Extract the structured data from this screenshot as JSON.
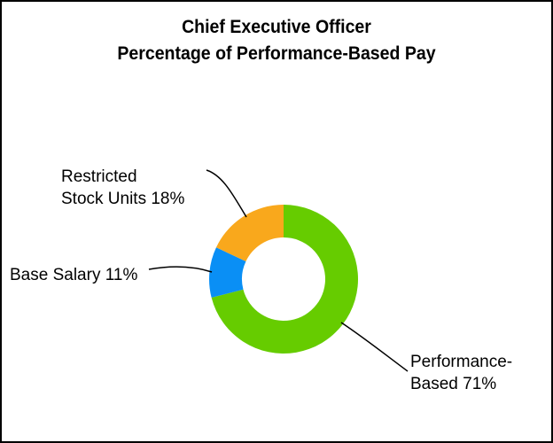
{
  "chart_data": {
    "type": "pie",
    "style": "donut",
    "title": "Chief Executive Officer",
    "subtitle": "Percentage of Performance-Based Pay",
    "slices": [
      {
        "name": "Performance-Based",
        "value": 71,
        "color": "#66cc00",
        "label_lines": [
          "Performance-",
          "Based 71%"
        ]
      },
      {
        "name": "Base Salary",
        "value": 11,
        "color": "#0a8ff5",
        "label_lines": [
          "Base Salary 11%"
        ]
      },
      {
        "name": "Restricted Stock Units",
        "value": 18,
        "color": "#f9a81c",
        "label_lines": [
          "Restricted",
          "Stock Units 18%"
        ]
      }
    ]
  }
}
